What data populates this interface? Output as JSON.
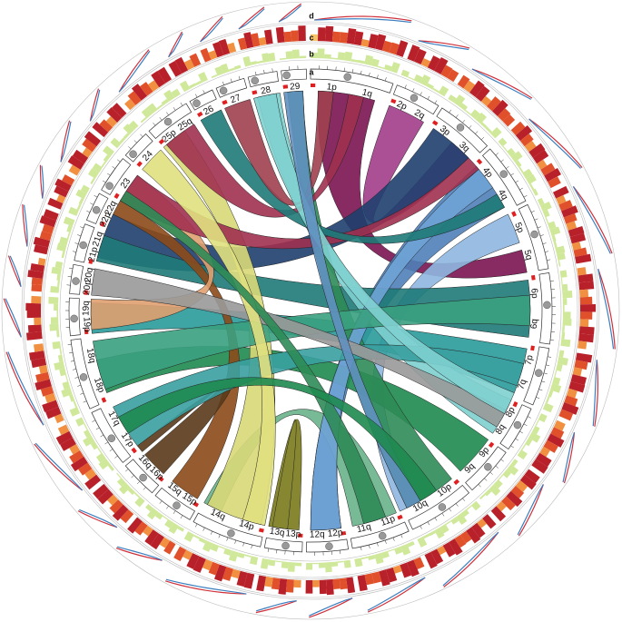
{
  "track_labels": [
    "a",
    "b",
    "c",
    "d"
  ],
  "chromosomes": [
    [
      "1p",
      "1q"
    ],
    [
      "2p",
      "2q"
    ],
    [
      "3p",
      "3q"
    ],
    [
      "4p",
      "4q"
    ],
    [
      "5p",
      "5q"
    ],
    [
      "6p",
      "6q"
    ],
    [
      "7p",
      "7q"
    ],
    [
      "8p",
      "8q"
    ],
    [
      "9p",
      "9q"
    ],
    [
      "10p",
      "10q"
    ],
    [
      "11p",
      "11q"
    ],
    [
      "12p",
      "12q"
    ],
    [
      "13p",
      "13q"
    ],
    [
      "14p",
      "14q"
    ],
    [
      "15p",
      "15q"
    ],
    [
      "16p",
      "16q"
    ],
    [
      "17p",
      "17q"
    ],
    [
      "18p",
      "18q"
    ],
    [
      "19p",
      "19q"
    ],
    [
      "20p",
      "20q"
    ],
    [
      "21p",
      "21q"
    ],
    [
      "22p",
      "22q"
    ],
    [
      "23"
    ],
    [
      "24"
    ],
    [
      "25p",
      "25q"
    ],
    [
      "26"
    ],
    [
      "27"
    ],
    [
      "28"
    ],
    [
      "29"
    ]
  ]
}
